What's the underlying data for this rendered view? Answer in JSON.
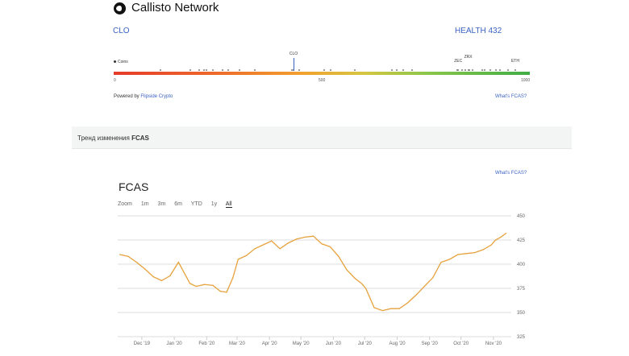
{
  "app": {
    "title": "Callisto Network",
    "logo_icon": "callisto-logo-icon"
  },
  "fcas_bar": {
    "symbol": "CLO",
    "health": "HEALTH 432",
    "coins_label": "Coins",
    "scale_min": "0",
    "scale_mid": "500",
    "scale_max": "1000",
    "current_score": 432,
    "marker_scores": [
      112,
      185,
      205,
      218,
      222,
      238,
      262,
      276,
      303,
      340,
      428,
      445,
      505,
      522,
      580,
      668,
      680,
      695,
      718,
      825,
      838,
      845,
      855,
      862,
      885,
      892,
      905,
      918,
      928,
      948
    ],
    "labeled_coins": [
      {
        "name": "CLO",
        "score": 432
      },
      {
        "name": "ZEC",
        "score": 828
      },
      {
        "name": "ZRX",
        "score": 852
      },
      {
        "name": "ETH",
        "score": 965
      }
    ],
    "powered_by_prefix": "Powered by",
    "powered_by_link": "Flipside Crypto",
    "whats_fcas": "What's FCAS?",
    "gradient_colors": [
      "#e53a2a",
      "#f2a02e",
      "#3fae45"
    ]
  },
  "section": {
    "prefix": "Тренд изменения",
    "bold": "FCAS"
  },
  "chart": {
    "whats_fcas": "What's FCAS?",
    "title": "FCAS",
    "zoom_label": "Zoom",
    "zoom_options": [
      "1m",
      "3m",
      "6m",
      "YTD",
      "1y",
      "All"
    ],
    "zoom_selected": "All"
  },
  "chart_data": {
    "type": "line",
    "title": "FCAS",
    "series": [
      {
        "color": "#e6a23c",
        "x": [
          "2019-11-10",
          "2019-11-18",
          "2019-11-26",
          "2019-12-04",
          "2019-12-12",
          "2019-12-20",
          "2019-12-28",
          "2020-01-05",
          "2020-01-10",
          "2020-01-16",
          "2020-01-22",
          "2020-01-30",
          "2020-02-07",
          "2020-02-14",
          "2020-02-20",
          "2020-02-26",
          "2020-03-02",
          "2020-03-10",
          "2020-03-18",
          "2020-03-26",
          "2020-04-03",
          "2020-04-11",
          "2020-04-19",
          "2020-04-27",
          "2020-05-05",
          "2020-05-13",
          "2020-05-21",
          "2020-05-29",
          "2020-06-06",
          "2020-06-14",
          "2020-06-22",
          "2020-06-28",
          "2020-07-02",
          "2020-07-10",
          "2020-07-18",
          "2020-07-26",
          "2020-08-03",
          "2020-08-11",
          "2020-08-19",
          "2020-08-27",
          "2020-09-04",
          "2020-09-12",
          "2020-09-20",
          "2020-09-28",
          "2020-10-06",
          "2020-10-14",
          "2020-10-22",
          "2020-10-30",
          "2020-11-03",
          "2020-11-08",
          "2020-11-13"
        ],
        "y": [
          410,
          408,
          402,
          395,
          387,
          383,
          388,
          402,
          392,
          380,
          377,
          379,
          378,
          372,
          371,
          386,
          405,
          409,
          416,
          420,
          424,
          416,
          422,
          426,
          428,
          429,
          421,
          418,
          408,
          394,
          385,
          380,
          375,
          355,
          352,
          354,
          354,
          360,
          368,
          377,
          386,
          402,
          405,
          410,
          411,
          412,
          415,
          420,
          425,
          428,
          432
        ]
      }
    ],
    "x_ticks": [
      "Dec '19",
      "Jan '20",
      "Feb '20",
      "Mar '20",
      "Apr '20",
      "May '20",
      "Jun '20",
      "Jul '20",
      "Aug '20",
      "Sep '20",
      "Oct '20",
      "Nov '20"
    ],
    "x_tick_dates": [
      "2019-12-01",
      "2020-01-01",
      "2020-02-01",
      "2020-03-01",
      "2020-04-01",
      "2020-05-01",
      "2020-06-01",
      "2020-07-01",
      "2020-08-01",
      "2020-09-01",
      "2020-10-01",
      "2020-11-01"
    ],
    "x_range": [
      "2019-11-08",
      "2020-11-18"
    ],
    "y_ticks": [
      450,
      425,
      400,
      375,
      350,
      325
    ],
    "ylim": [
      325,
      450
    ],
    "grid": true,
    "legend": "none"
  }
}
